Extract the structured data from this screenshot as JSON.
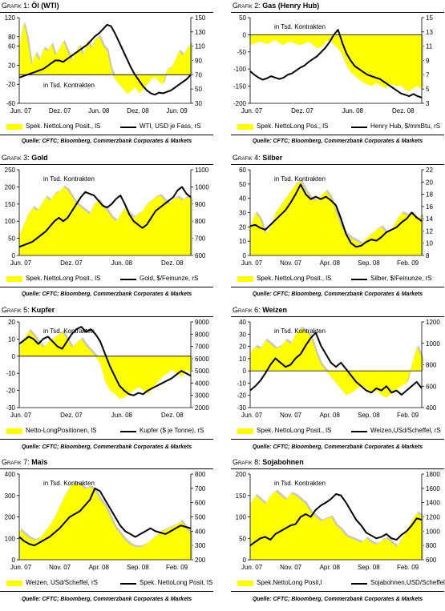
{
  "source_text": "Quelle: CFTC; Bloomberg, Commerzbank Corporates & Markets",
  "colors": {
    "area": "#ffff00",
    "line": "#000000",
    "shadow": "#c8c8c8"
  },
  "chart_data": [
    {
      "type": "area",
      "prefix": "Grafik 1:",
      "title": "Öl (WTI)",
      "annotation": "in Tsd. Kontrakten",
      "left_ticks": [
        "-60",
        "-20",
        "20",
        "60",
        "80",
        "120"
      ],
      "right_ticks": [
        "30",
        "50",
        "70",
        "90",
        "110",
        "130",
        "150"
      ],
      "ylim_left": [
        -60,
        120
      ],
      "ylim_right": [
        30,
        150
      ],
      "x_labels": [
        "Jun. 07",
        "Dez. 07",
        "Jun. 08",
        "Dez. 08",
        "Jun. 09"
      ],
      "legend": [
        "Spek. NettoLong Posit., lS",
        "WTI, USD je Fass, rS"
      ],
      "series": [
        {
          "name": "Spek. NettoLong Posit., lS",
          "axis": "left",
          "values": [
            60,
            110,
            75,
            20,
            45,
            30,
            55,
            50,
            65,
            40,
            55,
            70,
            50,
            30,
            45,
            60,
            40,
            70,
            55,
            75,
            80,
            60,
            50,
            10,
            -10,
            -20,
            -30,
            -40,
            -35,
            -25,
            -40,
            -30,
            -20,
            -10,
            -5,
            -15,
            -20,
            10,
            15,
            30,
            50,
            40,
            55,
            65
          ]
        },
        {
          "name": "WTI, USD je Fass, rS",
          "axis": "right",
          "values": [
            66,
            68,
            70,
            72,
            74,
            76,
            78,
            82,
            86,
            90,
            90,
            88,
            92,
            96,
            100,
            104,
            108,
            112,
            118,
            124,
            128,
            134,
            140,
            138,
            128,
            116,
            104,
            92,
            80,
            70,
            62,
            54,
            48,
            44,
            42,
            45,
            44,
            46,
            48,
            52,
            56,
            60,
            64,
            70
          ]
        }
      ]
    },
    {
      "type": "area",
      "prefix": "Grafik 2:",
      "title": "Gas (Henry Hub)",
      "annotation": "in Tsd. Kontrakten",
      "left_ticks": [
        "-200",
        "-150",
        "-100",
        "-50",
        "0",
        "50"
      ],
      "right_ticks": [
        "3",
        "5",
        "7",
        "9",
        "11",
        "13",
        "15"
      ],
      "ylim_left": [
        -200,
        50
      ],
      "ylim_right": [
        3,
        15
      ],
      "x_labels": [
        "Jun. 07",
        "Dez. 07",
        "Jun. 08",
        "Dez. 08"
      ],
      "legend": [
        "Spek. NettoLong Pos., lS",
        "Henry Hub, $/mmBtu, rS"
      ],
      "series": [
        {
          "name": "Spek. NettoLong Pos., lS",
          "axis": "left",
          "values": [
            -30,
            -25,
            -20,
            -22,
            -28,
            -20,
            -15,
            -25,
            -30,
            -20,
            -22,
            -28,
            -30,
            -25,
            -20,
            -30,
            -40,
            -35,
            -20,
            -15,
            -30,
            -40,
            -60,
            -90,
            -110,
            -120,
            -130,
            -140,
            -145,
            -150,
            -140,
            -148,
            -155,
            -150,
            -145,
            -150,
            -148,
            -160,
            -165,
            -155,
            -150,
            -160
          ]
        },
        {
          "name": "Henry Hub, $/mmBtu, rS",
          "axis": "right",
          "values": [
            7.5,
            7.0,
            6.6,
            6.3,
            6.5,
            6.8,
            6.6,
            6.4,
            6.6,
            7.0,
            7.2,
            7.6,
            8.0,
            8.3,
            8.8,
            9.2,
            9.6,
            10.2,
            10.8,
            11.6,
            12.6,
            13.3,
            11.5,
            10.0,
            9.0,
            8.2,
            7.8,
            7.4,
            7.0,
            6.8,
            6.6,
            6.4,
            6.0,
            5.6,
            5.2,
            4.8,
            4.4,
            4.2,
            4.0,
            4.3,
            4.0,
            3.8
          ]
        }
      ]
    },
    {
      "type": "area",
      "prefix": "Grafik 3:",
      "title": "Gold",
      "annotation": "in Tsd. Kontrakten",
      "left_ticks": [
        "0",
        "50",
        "100",
        "150",
        "200",
        "250"
      ],
      "right_ticks": [
        "600",
        "700",
        "800",
        "900",
        "1000",
        "1100"
      ],
      "ylim_left": [
        0,
        250
      ],
      "ylim_right": [
        600,
        1100
      ],
      "x_labels": [
        "Jun. 07",
        "Dez. 07",
        "Jun. 08",
        "Dez. 08"
      ],
      "legend": [
        "Spek. NettoLong Posit., lS",
        "Gold, $/Feinunze, rS"
      ],
      "series": [
        {
          "name": "Spek. NettoLong Posit., lS",
          "axis": "left",
          "values": [
            60,
            90,
            120,
            140,
            130,
            150,
            170,
            160,
            180,
            185,
            200,
            190,
            170,
            150,
            140,
            130,
            120,
            150,
            160,
            140,
            130,
            110,
            100,
            120,
            140,
            120,
            110,
            120,
            130,
            150,
            160,
            170,
            175,
            160,
            150,
            165,
            170,
            160,
            170,
            165
          ]
        },
        {
          "name": "Gold, $/Feinunze, rS",
          "axis": "right",
          "values": [
            650,
            660,
            670,
            680,
            700,
            720,
            740,
            770,
            800,
            820,
            800,
            820,
            860,
            900,
            940,
            970,
            960,
            950,
            920,
            890,
            880,
            900,
            930,
            950,
            900,
            840,
            800,
            780,
            760,
            780,
            820,
            860,
            880,
            900,
            920,
            940,
            980,
            1000,
            960,
            940
          ]
        }
      ]
    },
    {
      "type": "area",
      "prefix": "Grafik 4:",
      "title": "Silber",
      "annotation": "in Tsd. Kontrakten",
      "left_ticks": [
        "0",
        "10",
        "20",
        "30",
        "40",
        "50",
        "60"
      ],
      "right_ticks": [
        "8",
        "10",
        "12",
        "14",
        "16",
        "18",
        "20",
        "22"
      ],
      "ylim_left": [
        0,
        60
      ],
      "ylim_right": [
        8,
        22
      ],
      "x_labels": [
        "Jun. 07",
        "Nov. 07",
        "Apr. 08",
        "Sep. 08",
        "Feb. 09"
      ],
      "legend": [
        "Spek. NettoLong Posit., lS",
        "Silber, $/Feinunze, rS"
      ],
      "series": [
        {
          "name": "Spek. NettoLong Posit., lS",
          "axis": "left",
          "values": [
            20,
            30,
            25,
            15,
            20,
            30,
            35,
            40,
            45,
            50,
            52,
            45,
            40,
            38,
            42,
            45,
            40,
            30,
            20,
            15,
            12,
            10,
            8,
            12,
            15,
            18,
            20,
            15,
            18,
            25,
            30,
            28,
            30,
            25,
            28
          ]
        },
        {
          "name": "Silber, $/Feinunze, rS",
          "axis": "right",
          "values": [
            12.8,
            13.0,
            12.5,
            12.2,
            13.0,
            13.8,
            14.6,
            15.4,
            16.6,
            18.0,
            19.6,
            18.0,
            17.2,
            17.6,
            17.2,
            17.6,
            17.0,
            16.2,
            14.0,
            11.5,
            10.0,
            9.4,
            9.6,
            10.2,
            10.6,
            10.4,
            11.0,
            11.8,
            12.2,
            12.6,
            13.4,
            14.0,
            15.0,
            14.2,
            13.6
          ]
        }
      ]
    },
    {
      "type": "area",
      "prefix": "Grafik 5:",
      "title": "Kupfer",
      "annotation": "in Tsd. Kontrakten",
      "left_ticks": [
        "-30",
        "-20",
        "-10",
        "0",
        "10",
        "20"
      ],
      "right_ticks": [
        "2000",
        "3000",
        "4000",
        "5000",
        "6000",
        "7000",
        "8000",
        "9000"
      ],
      "ylim_left": [
        -30,
        20
      ],
      "ylim_right": [
        2000,
        9000
      ],
      "x_labels": [
        "Jun. 07",
        "Dez. 07",
        "Jun. 08",
        "Dez. 08"
      ],
      "legend": [
        "Netto-LongPositionen, lS",
        "Kupfer ($ je Tonne), rS"
      ],
      "series": [
        {
          "name": "Netto-LongPositionen, lS",
          "axis": "left",
          "values": [
            5,
            10,
            15,
            12,
            8,
            5,
            8,
            10,
            12,
            14,
            10,
            5,
            8,
            10,
            6,
            3,
            0,
            -5,
            -15,
            -20,
            -22,
            -25,
            -24,
            -22,
            -20,
            -18,
            -20,
            -22,
            -18,
            -15,
            -12,
            -10,
            -8,
            -10,
            -12,
            -8,
            -10
          ]
        },
        {
          "name": "Kupfer ($ je Tonne), rS",
          "axis": "right",
          "values": [
            7200,
            7500,
            7800,
            7600,
            7200,
            7600,
            7800,
            7400,
            7000,
            6800,
            7400,
            8000,
            8400,
            8600,
            8200,
            8400,
            8000,
            7400,
            6400,
            5400,
            4600,
            3800,
            3400,
            3100,
            3000,
            3200,
            3100,
            3400,
            3600,
            3800,
            4000,
            4200,
            4400,
            4700,
            5000,
            4800,
            4600
          ]
        }
      ]
    },
    {
      "type": "area",
      "prefix": "Grafik 6:",
      "title": "Weizen",
      "annotation": "in Tsd. Kontrakten",
      "left_ticks": [
        "-30",
        "-20",
        "-10",
        "0",
        "10",
        "20",
        "30",
        "40"
      ],
      "right_ticks": [
        "400",
        "600",
        "800",
        "1000",
        "1200"
      ],
      "ylim_left": [
        -30,
        40
      ],
      "ylim_right": [
        400,
        1200
      ],
      "x_labels": [
        "Jun. 07",
        "Nov. 07",
        "Apr. 08",
        "Sep. 08",
        "Feb. 09"
      ],
      "legend": [
        "Spek. NettoLong Posit., lS",
        "Weizen,USd/Scheffel, rS"
      ],
      "series": [
        {
          "name": "Spek. NettoLong Posit., lS",
          "axis": "left",
          "values": [
            15,
            20,
            18,
            25,
            22,
            18,
            20,
            25,
            22,
            30,
            35,
            32,
            28,
            15,
            5,
            0,
            -5,
            -10,
            -15,
            -20,
            -18,
            -15,
            -12,
            -14,
            -18,
            -16,
            -20,
            -22,
            -18,
            -15,
            -12,
            -10,
            5,
            20,
            10
          ]
        },
        {
          "name": "Weizen,USd/Scheffel, rS",
          "axis": "right",
          "values": [
            560,
            600,
            650,
            720,
            800,
            860,
            820,
            780,
            800,
            860,
            900,
            980,
            1050,
            1100,
            980,
            900,
            820,
            780,
            820,
            760,
            700,
            640,
            600,
            560,
            540,
            580,
            560,
            600,
            540,
            560,
            520,
            560,
            600,
            640,
            580
          ]
        }
      ]
    },
    {
      "type": "area",
      "prefix": "Grafik 7:",
      "title": "Mais",
      "annotation": "in Tsd. Kontrakten",
      "left_ticks": [
        "0",
        "100",
        "200",
        "300",
        "400"
      ],
      "right_ticks": [
        "200",
        "300",
        "400",
        "500",
        "600",
        "700",
        "800"
      ],
      "ylim_left": [
        0,
        400
      ],
      "ylim_right": [
        200,
        800
      ],
      "x_labels": [
        "Jun. 07",
        "Nov. 07",
        "Apr. 08",
        "Sep. 08",
        "Feb. 09"
      ],
      "legend": [
        "Weizen, USd/Scheffel, rS",
        "Spek. NettoLong Posit, lS"
      ],
      "series": [
        {
          "name": "Weizen, USd/Scheffel, rS",
          "axis": "left",
          "values": [
            140,
            120,
            100,
            90,
            100,
            130,
            160,
            200,
            250,
            300,
            340,
            360,
            350,
            330,
            340,
            320,
            280,
            250,
            200,
            150,
            120,
            90,
            70,
            60,
            60,
            70,
            90,
            110,
            130,
            140,
            150,
            160,
            180,
            150,
            120
          ]
        },
        {
          "name": "Spek. NettoLong Posit, lS",
          "axis": "right",
          "values": [
            360,
            330,
            310,
            300,
            320,
            340,
            360,
            390,
            420,
            460,
            500,
            520,
            540,
            580,
            620,
            700,
            680,
            620,
            560,
            500,
            440,
            400,
            380,
            360,
            380,
            400,
            420,
            400,
            390,
            380,
            400,
            420,
            440,
            430,
            420
          ]
        }
      ]
    },
    {
      "type": "area",
      "prefix": "Grafik 8:",
      "title": "Sojabohnen",
      "annotation": "in Tsd. Kontrakten",
      "left_ticks": [
        "0",
        "50",
        "100",
        "150",
        "200"
      ],
      "right_ticks": [
        "600",
        "800",
        "1000",
        "1200",
        "1400",
        "1600",
        "1800"
      ],
      "ylim_left": [
        0,
        200
      ],
      "ylim_right": [
        600,
        1800
      ],
      "x_labels": [
        "Jun. 07",
        "Nov. 07",
        "Apr. 08",
        "Sep. 08",
        "Feb. 09"
      ],
      "legend": [
        "Spek.NettoLong Posit,l",
        "Sojabohnen,USD/Scheffel, r"
      ],
      "series": [
        {
          "name": "Spek.NettoLong Posit,l",
          "axis": "left",
          "values": [
            130,
            150,
            140,
            130,
            150,
            160,
            150,
            140,
            155,
            150,
            140,
            130,
            110,
            100,
            90,
            95,
            100,
            80,
            70,
            55,
            50,
            45,
            40,
            50,
            40,
            35,
            45,
            50,
            40,
            30,
            50,
            70,
            90,
            110,
            100
          ]
        },
        {
          "name": "Sojabohnen,USD/Scheffel, r",
          "axis": "right",
          "values": [
            800,
            850,
            900,
            920,
            880,
            960,
            1000,
            1040,
            1080,
            1100,
            1200,
            1240,
            1200,
            1300,
            1360,
            1400,
            1450,
            1520,
            1500,
            1400,
            1280,
            1160,
            1080,
            980,
            940,
            900,
            920,
            960,
            900,
            880,
            950,
            1000,
            1080,
            1180,
            1160
          ]
        }
      ]
    }
  ]
}
